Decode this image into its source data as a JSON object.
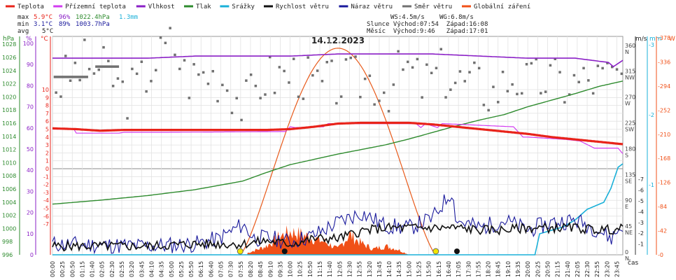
{
  "chart_data": {
    "type": "line",
    "title": "14.12.2023",
    "legend": [
      {
        "name": "Teplota",
        "color": "#e8231a"
      },
      {
        "name": "Přízemní teplota",
        "color": "#d23cf0"
      },
      {
        "name": "Vlhkost",
        "color": "#8a1fc6"
      },
      {
        "name": "Tlak",
        "color": "#2e8b2e"
      },
      {
        "name": "Srážky",
        "color": "#1ab0d8"
      },
      {
        "name": "Rychlost větru",
        "color": "#111111"
      },
      {
        "name": "Náraz větru",
        "color": "#1a1a9c"
      },
      {
        "name": "Směr větru",
        "color": "#707070"
      },
      {
        "name": "Globální záření",
        "color": "#f05018"
      }
    ],
    "stats": {
      "max_label": "max",
      "max_temp": "5.9°C",
      "max_hum": "96%",
      "max_press": "1022.4hPa",
      "rain": "1.3mm",
      "min_label": "min",
      "min_temp": "3.1°C",
      "min_hum": "89%",
      "min_press": "1003.7hPa",
      "avg_label": "avg",
      "avg_temp": "5°C"
    },
    "info": {
      "ws": "WS:4.5m/s",
      "wg": "WG:6.8m/s",
      "slunce": "Slunce Východ:07:54  Západ:16:08",
      "mesic": "Měsíc  Východ:9:46   Západ:17:01"
    },
    "axes": {
      "hpa_title": "hPa",
      "pct_title": "%",
      "degc_title": "°C",
      "ms_title": "m/s",
      "mm_title": "mm",
      "w_title": "W",
      "xlabel": "čas",
      "hpa_ticks": [
        996,
        998,
        1000,
        1002,
        1004,
        1006,
        1008,
        1010,
        1012,
        1014,
        1016,
        1018,
        1020,
        1022,
        1024,
        1026,
        1028
      ],
      "pct_ticks": [
        0,
        10,
        20,
        30,
        40,
        50,
        60,
        70,
        80,
        90,
        100
      ],
      "temp_ticks": [
        -7,
        -6,
        -5,
        -4,
        -3,
        -2,
        -1,
        0,
        1,
        2,
        3,
        4,
        5,
        6,
        7,
        8,
        9,
        10
      ],
      "dir_ticks": [
        {
          "deg": 0,
          "label": "0",
          "dir": "N"
        },
        {
          "deg": 45,
          "label": "45",
          "dir": "NE"
        },
        {
          "deg": 90,
          "label": "90",
          "dir": "E"
        },
        {
          "deg": 135,
          "label": "135",
          "dir": "SE"
        },
        {
          "deg": 180,
          "label": "180",
          "dir": "S"
        },
        {
          "deg": 225,
          "label": "225",
          "dir": "SW"
        },
        {
          "deg": 270,
          "label": "270",
          "dir": "W"
        },
        {
          "deg": 315,
          "label": "315",
          "dir": "NW"
        },
        {
          "deg": 360,
          "label": "360",
          "dir": "N"
        }
      ],
      "ms_ticks": [
        1,
        2,
        3,
        4,
        5,
        6,
        7
      ],
      "mm_ticks": [
        1,
        2,
        3
      ],
      "w_ticks": [
        0,
        42,
        84,
        126,
        168,
        210,
        252,
        294,
        336,
        378
      ],
      "time_ticks": [
        "00:00",
        "00:25",
        "00:50",
        "01:15",
        "01:40",
        "02:05",
        "02:30",
        "02:55",
        "03:20",
        "03:45",
        "04:10",
        "04:35",
        "05:00",
        "05:25",
        "05:50",
        "06:15",
        "06:40",
        "07:05",
        "07:30",
        "07:55",
        "08:20",
        "08:45",
        "09:10",
        "09:35",
        "10:00",
        "10:25",
        "10:50",
        "11:15",
        "11:40",
        "12:05",
        "12:30",
        "12:55",
        "13:20",
        "13:45",
        "14:10",
        "14:35",
        "15:00",
        "15:25",
        "15:50",
        "16:15",
        "16:40",
        "17:05",
        "17:30",
        "17:55",
        "18:20",
        "18:45",
        "19:10",
        "19:35",
        "20:00",
        "20:25",
        "20:50",
        "21:15",
        "21:40",
        "22:05",
        "22:30",
        "22:55",
        "23:20",
        "23:45"
      ]
    },
    "markers": {
      "sunrise_h": 7.9,
      "sunset_h": 16.13,
      "moonrise_h": 9.77,
      "moonset_h": 17.02
    },
    "series": [
      {
        "name": "Teplota",
        "unit": "°C",
        "x": [
          0,
          1,
          2,
          3,
          4,
          5,
          6,
          7,
          8,
          9,
          10,
          11,
          12,
          13,
          14,
          15,
          16,
          17,
          18,
          19,
          20,
          21,
          22,
          23,
          24
        ],
        "values": [
          5.1,
          5.0,
          4.8,
          4.9,
          4.9,
          4.9,
          4.9,
          4.9,
          4.9,
          4.9,
          5.0,
          5.3,
          5.7,
          5.8,
          5.8,
          5.8,
          5.6,
          5.3,
          5.0,
          4.7,
          4.4,
          4.0,
          3.7,
          3.4,
          3.1
        ]
      },
      {
        "name": "Přízemní teplota",
        "unit": "°C",
        "x": [
          0,
          0.9,
          1,
          2.8,
          3,
          4,
          4.6,
          9.8,
          10,
          10.2,
          11.4,
          11.6,
          13,
          15.3,
          15.5,
          15.7,
          16.2,
          16.4,
          19.4,
          19.8,
          20,
          21.6,
          22.2,
          22.8,
          23.8,
          24
        ],
        "values": [
          5.0,
          5.0,
          4.5,
          4.5,
          4.6,
          4.6,
          4.6,
          4.7,
          5.3,
          5.2,
          5.3,
          5.7,
          5.7,
          5.7,
          5.2,
          5.7,
          5.2,
          5.7,
          5.3,
          4.0,
          4.0,
          3.7,
          3.5,
          2.6,
          2.6,
          1.9
        ]
      },
      {
        "name": "Vlhkost",
        "unit": "%",
        "x": [
          0,
          2,
          4,
          6,
          8,
          10,
          12,
          14,
          16,
          18,
          20,
          22,
          23.4,
          23.6,
          24
        ],
        "values": [
          93,
          93,
          93,
          94,
          94,
          94,
          95,
          95,
          95,
          94,
          93,
          93,
          91,
          89,
          92
        ]
      },
      {
        "name": "Tlak",
        "unit": "hPa",
        "x": [
          0,
          2,
          4,
          6,
          8,
          9,
          10,
          11,
          12,
          13,
          14,
          15,
          16,
          17,
          18,
          19,
          20,
          21,
          22,
          23,
          24
        ],
        "values": [
          1003.7,
          1004.3,
          1005.0,
          1005.9,
          1007.2,
          1008.5,
          1009.7,
          1010.5,
          1011.3,
          1012.0,
          1012.7,
          1013.6,
          1014.6,
          1015.6,
          1016.5,
          1017.3,
          1018.5,
          1019.5,
          1020.5,
          1021.6,
          1022.4
        ]
      },
      {
        "name": "Srážky",
        "unit": "mm",
        "x": [
          0,
          20.3,
          20.5,
          21.5,
          22.0,
          22.5,
          23.2,
          23.5,
          23.8,
          24
        ],
        "values": [
          0,
          0,
          0.3,
          0.4,
          0.5,
          0.65,
          0.75,
          0.95,
          1.25,
          1.3
        ]
      },
      {
        "name": "Rychlost větru",
        "unit": "m/s",
        "x": [
          0,
          2,
          4,
          6,
          8,
          9,
          10,
          11,
          12,
          13,
          14,
          15,
          16,
          17,
          18,
          19,
          20,
          21,
          22,
          23,
          24
        ],
        "values": [
          0.8,
          0.8,
          0.8,
          1.0,
          1.0,
          1.3,
          1.0,
          1.5,
          1.5,
          2.2,
          2.5,
          2.5,
          2.5,
          2.5,
          2.3,
          2.3,
          2.5,
          2.5,
          2.5,
          2.3,
          2.4
        ]
      },
      {
        "name": "Náraz větru",
        "unit": "m/s",
        "x": [
          0,
          2,
          4,
          6,
          7,
          8,
          8.5,
          9,
          10,
          11,
          12,
          13,
          14,
          15,
          16,
          16.8,
          17,
          18,
          19,
          20,
          21,
          22,
          23,
          23.5,
          24
        ],
        "values": [
          1.0,
          0.9,
          0.8,
          1.0,
          1.5,
          2.8,
          1.5,
          1.6,
          1.2,
          1.8,
          3.0,
          3.9,
          2.7,
          2.5,
          3.4,
          5.9,
          3.2,
          2.5,
          3.2,
          2.3,
          3.0,
          3.2,
          2.3,
          1.5,
          2.8
        ]
      },
      {
        "name": "Globální záření",
        "unit": "W/m²",
        "x": [
          8.2,
          9,
          9.5,
          10,
          10.5,
          11,
          11.5,
          12,
          12.5,
          13,
          13.5,
          14,
          14.5,
          15
        ],
        "values": [
          3,
          15,
          30,
          40,
          35,
          28,
          22,
          10,
          35,
          20,
          10,
          15,
          10,
          0
        ]
      }
    ],
    "wind_direction_deg": {
      "x": [
        0.2,
        1.3,
        2.3,
        3.0,
        3.6,
        4.3,
        5.0,
        5.6,
        6.5,
        7.3,
        8.0,
        8.8,
        9.5,
        10.3,
        11.0,
        11.8,
        12.5,
        13.3,
        14.0,
        14.8,
        15.5,
        16.3,
        17.0,
        17.8,
        18.5,
        19.3,
        20.0,
        20.8,
        21.5,
        22.3,
        23.0,
        23.8
      ],
      "values": [
        300,
        335,
        320,
        280,
        300,
        340,
        375,
        310,
        320,
        305,
        260,
        310,
        315,
        320,
        295,
        300,
        305,
        310,
        290,
        330,
        300,
        320,
        305,
        300,
        285,
        315,
        300,
        310,
        300,
        305,
        310,
        315
      ]
    },
    "clear_sky_radiation": {
      "peak_h": 12.0,
      "peak_w": 360,
      "start_h": 7.9,
      "end_h": 16.13
    }
  }
}
